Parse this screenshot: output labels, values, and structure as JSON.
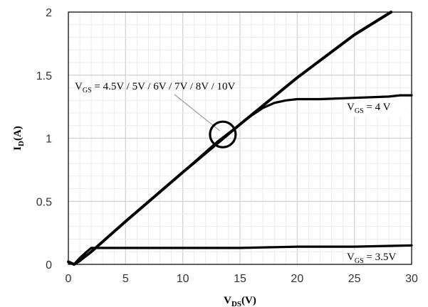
{
  "chart_data": {
    "type": "line",
    "title": "",
    "xlabel": {
      "main": "V",
      "sub": "DS",
      "unit": "(V)"
    },
    "ylabel": {
      "main": "I",
      "sub": "D",
      "unit": "(A)"
    },
    "xlim": [
      0,
      30
    ],
    "ylim": [
      0,
      2
    ],
    "x_ticks": [
      "0",
      "5",
      "10",
      "15",
      "20",
      "25",
      "30"
    ],
    "y_ticks": [
      "0",
      "0.5",
      "1",
      "1.5",
      "2"
    ],
    "grid": true,
    "series": [
      {
        "name": "VGS = 4.5V / 5V / 6V / 7V / 8V / 10V",
        "x": [
          0,
          0.5,
          1,
          2,
          5,
          10,
          15,
          20,
          25,
          28.2
        ],
        "y": [
          0.02,
          0.0,
          0.03,
          0.1,
          0.34,
          0.73,
          1.11,
          1.48,
          1.82,
          2.0
        ]
      },
      {
        "name": "VGS = 4 V",
        "x": [
          0,
          0.5,
          1,
          2,
          5,
          10,
          13,
          15,
          16,
          17,
          18,
          19,
          20,
          22,
          25,
          28,
          29,
          30
        ],
        "y": [
          0.02,
          0.0,
          0.03,
          0.1,
          0.34,
          0.73,
          0.97,
          1.11,
          1.18,
          1.24,
          1.28,
          1.3,
          1.31,
          1.31,
          1.32,
          1.33,
          1.34,
          1.34
        ]
      },
      {
        "name": "VGS = 3.5V",
        "x": [
          0,
          0.5,
          1,
          1.6,
          2,
          3,
          5,
          8,
          10,
          15,
          20,
          25,
          30
        ],
        "y": [
          0.02,
          0.0,
          0.05,
          0.1,
          0.13,
          0.13,
          0.13,
          0.13,
          0.13,
          0.13,
          0.14,
          0.14,
          0.15
        ]
      }
    ],
    "annotations": [
      {
        "id": "main",
        "text_main": "V",
        "text_sub": "GS",
        "text_rest": " = 4.5V / 5V / 6V / 7V / 8V / 10V",
        "target": [
          13.5,
          1.03
        ]
      },
      {
        "id": "vgs4",
        "text_main": "V",
        "text_sub": "GS",
        "text_rest": " = 4 V"
      },
      {
        "id": "vgs35",
        "text_main": "V",
        "text_sub": "GS",
        "text_rest": " = 3.5V"
      }
    ]
  }
}
